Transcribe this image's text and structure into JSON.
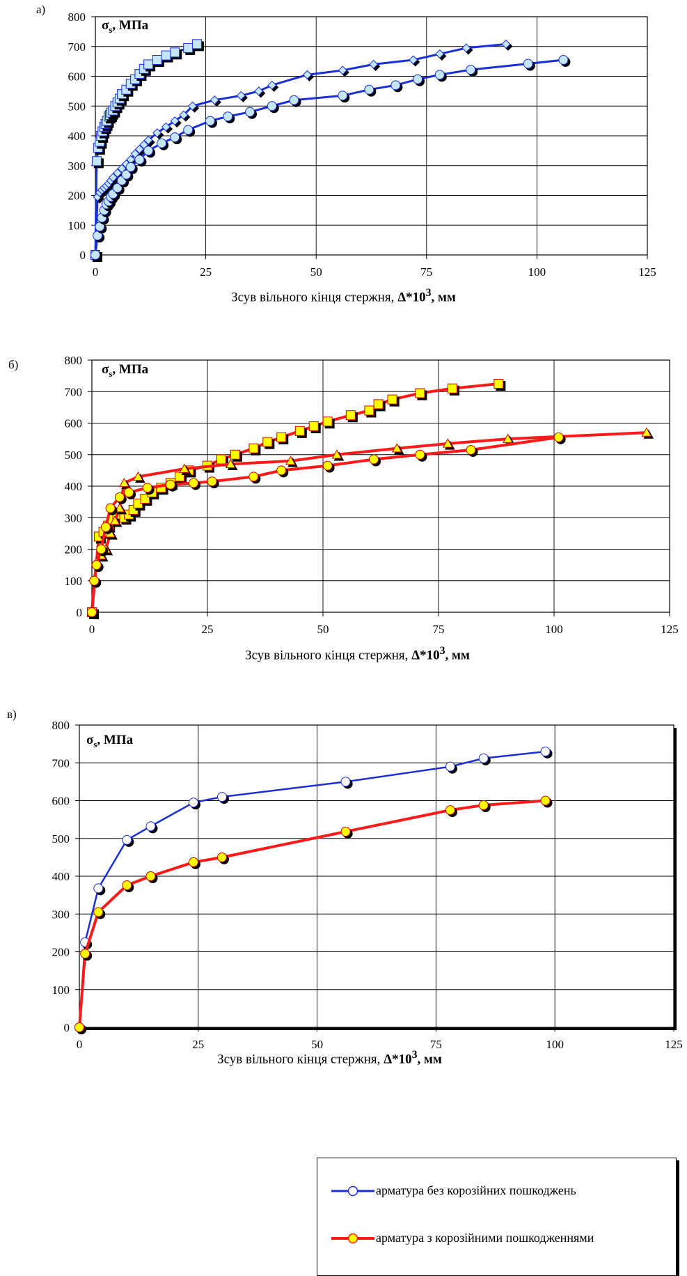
{
  "xlabel_text": "Зсув вільного кінця стержня, ",
  "xlabel_bold": "Δ*10",
  "xlabel_sup": "3",
  "xlabel_unit": ", мм",
  "ylabel_main": "σ",
  "ylabel_sub": "s",
  "ylabel_unit": ", МПа",
  "ylabel_unit_c": ", МПа",
  "legend": {
    "item1": "арматура без корозійних пошкоджень",
    "item2": "арматура з корозійними пошкодженнями"
  },
  "colors": {
    "blue": "#1a2fd6",
    "red": "#ff1a1a",
    "light_blue": "#c4e6f8",
    "yellow": "#ffff00",
    "black": "#000000"
  },
  "chart_data": [
    {
      "panel": "а)",
      "type": "line",
      "xlim": [
        0,
        125
      ],
      "ylim": [
        0,
        800
      ],
      "xticks": [
        0,
        25,
        50,
        75,
        100,
        125
      ],
      "yticks": [
        0,
        100,
        200,
        300,
        400,
        500,
        600,
        700,
        800
      ],
      "grid": true,
      "series": [
        {
          "color": "blue",
          "marker": "square",
          "width": 3,
          "x": [
            0,
            0.3,
            0.6,
            1,
            1.3,
            1.6,
            2,
            2.3,
            2.6,
            3,
            3.3,
            3.6,
            4,
            4.5,
            5,
            5.5,
            6,
            7,
            8,
            9,
            10,
            11,
            12,
            14,
            16,
            18,
            21,
            23
          ],
          "y": [
            0,
            315,
            360,
            380,
            400,
            415,
            430,
            440,
            450,
            465,
            470,
            478,
            485,
            500,
            512,
            525,
            540,
            555,
            575,
            590,
            608,
            625,
            640,
            655,
            670,
            680,
            695,
            708
          ]
        },
        {
          "color": "blue",
          "marker": "diamond",
          "width": 3,
          "x": [
            0,
            0.5,
            1,
            1.5,
            2,
            2.5,
            3,
            3.5,
            4,
            5,
            6,
            7,
            8,
            9,
            10,
            11,
            12,
            14,
            16,
            18,
            20,
            22,
            27,
            33,
            37,
            40,
            48,
            56,
            63,
            72,
            78,
            84,
            93
          ],
          "y": [
            0,
            195,
            210,
            218,
            225,
            232,
            240,
            250,
            260,
            275,
            290,
            305,
            320,
            340,
            355,
            370,
            385,
            410,
            430,
            450,
            470,
            500,
            520,
            535,
            550,
            570,
            605,
            620,
            640,
            655,
            675,
            695,
            708
          ]
        },
        {
          "color": "blue",
          "marker": "circle",
          "width": 3,
          "x": [
            0,
            0.5,
            1,
            1.5,
            2,
            2.5,
            3,
            3.5,
            4,
            5,
            6,
            7,
            8,
            10,
            12,
            15,
            18,
            21,
            26,
            30,
            35,
            40,
            45,
            56,
            62,
            68,
            73,
            78,
            85,
            98,
            106
          ],
          "y": [
            0,
            65,
            95,
            125,
            150,
            170,
            180,
            195,
            205,
            225,
            250,
            270,
            295,
            320,
            350,
            375,
            395,
            420,
            450,
            465,
            480,
            500,
            520,
            535,
            555,
            570,
            590,
            605,
            622,
            642,
            655
          ]
        }
      ]
    },
    {
      "panel": "б)",
      "type": "line",
      "xlim": [
        0,
        125
      ],
      "ylim": [
        0,
        800
      ],
      "xticks": [
        0,
        25,
        50,
        75,
        100,
        125
      ],
      "yticks": [
        0,
        100,
        200,
        300,
        400,
        500,
        600,
        700,
        800
      ],
      "grid": true,
      "series": [
        {
          "color": "red",
          "marker": "square",
          "width": 4,
          "x": [
            0,
            1.5,
            2.5,
            3.5,
            4.5,
            5.5,
            7,
            8,
            9,
            10,
            11.5,
            13,
            15,
            17,
            19,
            21,
            25,
            28,
            31,
            35,
            38,
            41,
            45,
            48,
            51,
            56,
            60,
            62,
            65,
            71,
            78,
            88
          ],
          "y": [
            0,
            240,
            255,
            275,
            295,
            310,
            300,
            310,
            325,
            345,
            360,
            380,
            395,
            410,
            430,
            450,
            465,
            485,
            500,
            520,
            540,
            555,
            575,
            590,
            605,
            625,
            640,
            660,
            675,
            695,
            710,
            725
          ]
        },
        {
          "color": "red",
          "marker": "triangle",
          "width": 4,
          "x": [
            0,
            1,
            2,
            3,
            4,
            5,
            6,
            7,
            10,
            20,
            30,
            43,
            53,
            66,
            77,
            90,
            120
          ],
          "y": [
            0,
            160,
            180,
            200,
            250,
            290,
            330,
            410,
            430,
            455,
            470,
            480,
            500,
            520,
            535,
            550,
            570
          ]
        },
        {
          "color": "red",
          "marker": "circle",
          "width": 4,
          "x": [
            0,
            0.5,
            1,
            2,
            3,
            4,
            6,
            8,
            12,
            17,
            22,
            26,
            35,
            41,
            51,
            61,
            71,
            82,
            101
          ],
          "y": [
            0,
            100,
            150,
            200,
            270,
            330,
            365,
            380,
            395,
            405,
            410,
            415,
            430,
            450,
            465,
            485,
            500,
            515,
            555
          ]
        }
      ]
    },
    {
      "panel": "в)",
      "type": "line",
      "xlim": [
        0,
        125
      ],
      "ylim": [
        0,
        800
      ],
      "xticks": [
        0,
        25,
        50,
        75,
        100,
        125
      ],
      "yticks": [
        0,
        100,
        200,
        300,
        400,
        500,
        600,
        700,
        800
      ],
      "grid": true,
      "series": [
        {
          "color": "blue",
          "fill": "#ffffff",
          "marker": "circle",
          "width": 2.5,
          "x": [
            0,
            1.2,
            4,
            10,
            15,
            24,
            30,
            56,
            78,
            85,
            98
          ],
          "y": [
            0,
            225,
            368,
            496,
            532,
            595,
            610,
            650,
            690,
            712,
            730
          ]
        },
        {
          "color": "red",
          "fill": "#ffff00",
          "marker": "circle",
          "width": 4,
          "x": [
            0,
            1.2,
            4,
            10,
            15,
            24,
            30,
            56,
            78,
            85,
            98
          ],
          "y": [
            0,
            195,
            305,
            376,
            400,
            437,
            450,
            518,
            575,
            588,
            600
          ]
        }
      ]
    }
  ]
}
